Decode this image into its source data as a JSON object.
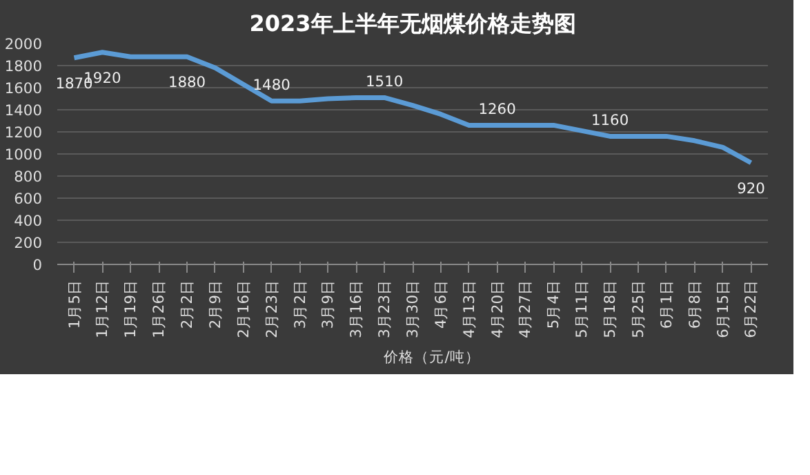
{
  "chart_data": {
    "type": "line",
    "title": "2023年上半年无烟煤价格走势图",
    "categories": [
      "1月5日",
      "1月12日",
      "1月19日",
      "1月26日",
      "2月2日",
      "2月9日",
      "2月16日",
      "2月23日",
      "3月2日",
      "3月9日",
      "3月16日",
      "3月23日",
      "3月30日",
      "4月6日",
      "4月13日",
      "4月20日",
      "4月27日",
      "5月4日",
      "5月11日",
      "5月18日",
      "5月25日",
      "6月1日",
      "6月8日",
      "6月15日",
      "6月22日"
    ],
    "series": [
      {
        "name": "价格（元/吨）",
        "color": "#5b9bd5",
        "values": [
          1870,
          1920,
          1880,
          1880,
          1880,
          1780,
          1630,
          1480,
          1480,
          1500,
          1510,
          1510,
          1440,
          1360,
          1260,
          1260,
          1260,
          1260,
          1210,
          1160,
          1160,
          1160,
          1120,
          1060,
          920
        ],
        "value_labels": [
          "1870",
          "1920",
          null,
          null,
          "1880",
          null,
          null,
          "1480",
          null,
          null,
          null,
          "1510",
          null,
          null,
          null,
          "1260",
          null,
          null,
          null,
          "1160",
          null,
          null,
          null,
          null,
          "920"
        ]
      }
    ],
    "ylim": [
      0,
      2000
    ],
    "yticks": [
      0,
      200,
      400,
      600,
      800,
      1000,
      1200,
      1400,
      1600,
      1800,
      2000
    ],
    "grid": "y",
    "legend": "bottom",
    "marker": "none",
    "line_style": "solid"
  }
}
